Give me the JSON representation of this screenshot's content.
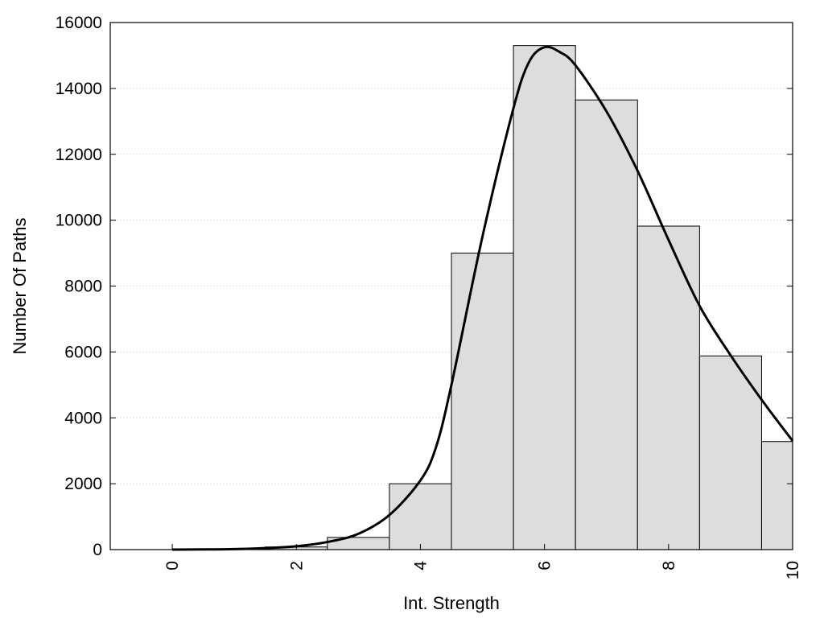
{
  "chart_data": {
    "type": "bar",
    "title": "",
    "xlabel": "Int. Strength",
    "ylabel": "Number Of Paths",
    "xlim": [
      -1,
      10
    ],
    "ylim": [
      0,
      16000
    ],
    "grid": "horizontal dotted",
    "legend": "none",
    "x_ticks": [
      0,
      2,
      4,
      6,
      8,
      10
    ],
    "y_ticks": [
      0,
      2000,
      4000,
      6000,
      8000,
      10000,
      12000,
      14000,
      16000
    ],
    "bins": [
      {
        "x": 0,
        "value": 0
      },
      {
        "x": 1,
        "value": 20
      },
      {
        "x": 2,
        "value": 80
      },
      {
        "x": 3,
        "value": 370
      },
      {
        "x": 4,
        "value": 2000
      },
      {
        "x": 5,
        "value": 9000
      },
      {
        "x": 6,
        "value": 15300
      },
      {
        "x": 7,
        "value": 13650
      },
      {
        "x": 8,
        "value": 9820
      },
      {
        "x": 9,
        "value": 5880
      },
      {
        "x": 10,
        "value": 3280
      }
    ],
    "bar_width": 1,
    "bar_color": "#dddddd",
    "curve": {
      "x": [
        0,
        0.5,
        1,
        1.5,
        2,
        2.5,
        3,
        3.5,
        4,
        4.25,
        4.5,
        5,
        5.5,
        5.75,
        6,
        6.25,
        6.5,
        7,
        7.5,
        8,
        8.5,
        9,
        9.5,
        10
      ],
      "y": [
        0,
        5,
        15,
        45,
        100,
        230,
        480,
        1050,
        2100,
        3100,
        5000,
        9500,
        13400,
        14800,
        15250,
        15100,
        14700,
        13300,
        11500,
        9400,
        7400,
        5900,
        4550,
        3300
      ],
      "color": "#000000"
    }
  }
}
